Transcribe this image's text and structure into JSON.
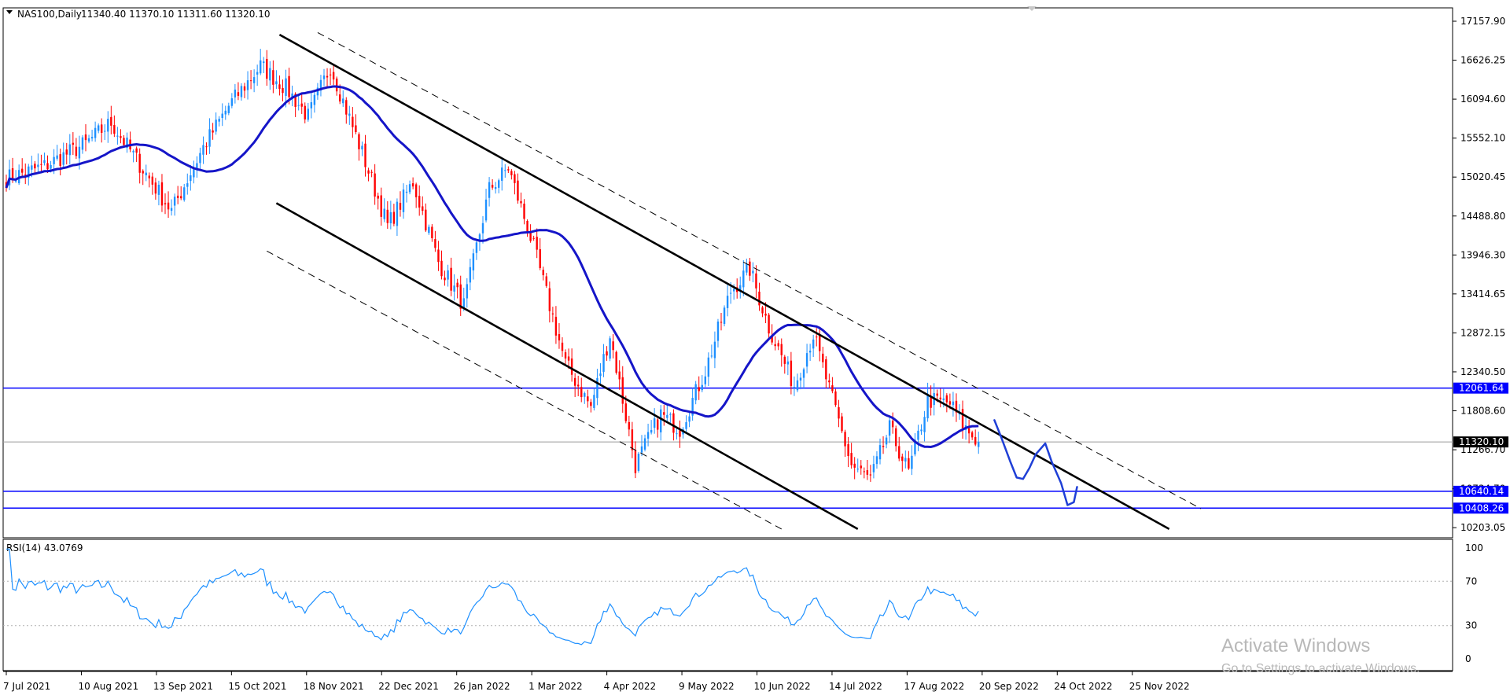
{
  "chart_data": {
    "type": "candlestick",
    "symbol_header": "NAS100,Daily",
    "ohlc_header": "11340.40 11370.10 11311.60 11320.10",
    "price_axis": {
      "ticks": [
        "17157.90",
        "16626.25",
        "16094.60",
        "15552.10",
        "15020.45",
        "14488.80",
        "13946.30",
        "13414.65",
        "12872.15",
        "12340.50",
        "11808.60",
        "11266.70",
        "10734.70",
        "10203.05"
      ],
      "range": [
        10000,
        17300
      ]
    },
    "date_axis": {
      "ticks": [
        "7 Jul 2021",
        "10 Aug 2021",
        "13 Sep 2021",
        "15 Oct 2021",
        "18 Nov 2021",
        "22 Dec 2021",
        "26 Jan 2022",
        "1 Mar 2022",
        "4 Apr 2022",
        "9 May 2022",
        "10 Jun 2022",
        "14 Jul 2022",
        "17 Aug 2022",
        "20 Sep 2022",
        "24 Oct 2022",
        "25 Nov 2022"
      ]
    },
    "anchors": [
      {
        "bar": 0,
        "price": 14950
      },
      {
        "bar": 12,
        "price": 15120
      },
      {
        "bar": 25,
        "price": 15430
      },
      {
        "bar": 33,
        "price": 15720
      },
      {
        "bar": 45,
        "price": 14950
      },
      {
        "bar": 52,
        "price": 14500
      },
      {
        "bar": 62,
        "price": 15380
      },
      {
        "bar": 70,
        "price": 15950
      },
      {
        "bar": 80,
        "price": 16500
      },
      {
        "bar": 88,
        "price": 16200
      },
      {
        "bar": 95,
        "price": 15800
      },
      {
        "bar": 102,
        "price": 16500
      },
      {
        "bar": 112,
        "price": 15300
      },
      {
        "bar": 120,
        "price": 14300
      },
      {
        "bar": 128,
        "price": 14900
      },
      {
        "bar": 136,
        "price": 13800
      },
      {
        "bar": 144,
        "price": 13200
      },
      {
        "bar": 152,
        "price": 14800
      },
      {
        "bar": 158,
        "price": 15100
      },
      {
        "bar": 166,
        "price": 14000
      },
      {
        "bar": 176,
        "price": 12400
      },
      {
        "bar": 184,
        "price": 11800
      },
      {
        "bar": 190,
        "price": 12800
      },
      {
        "bar": 198,
        "price": 11000
      },
      {
        "bar": 206,
        "price": 11700
      },
      {
        "bar": 212,
        "price": 11500
      },
      {
        "bar": 220,
        "price": 12300
      },
      {
        "bar": 228,
        "price": 13400
      },
      {
        "bar": 234,
        "price": 13700
      },
      {
        "bar": 240,
        "price": 12900
      },
      {
        "bar": 248,
        "price": 12100
      },
      {
        "bar": 254,
        "price": 12800
      },
      {
        "bar": 260,
        "price": 11900
      },
      {
        "bar": 266,
        "price": 11000
      },
      {
        "bar": 272,
        "price": 10800
      },
      {
        "bar": 278,
        "price": 11500
      },
      {
        "bar": 284,
        "price": 10900
      },
      {
        "bar": 290,
        "price": 11900
      },
      {
        "bar": 297,
        "price": 11850
      },
      {
        "bar": 302,
        "price": 11500
      },
      {
        "bar": 306,
        "price": 11320
      }
    ],
    "horizontal_levels": [
      {
        "price": 12061.64,
        "label": "12061.64",
        "color": "#0000ff"
      },
      {
        "price": 10640.14,
        "label": "10640.14",
        "color": "#0000ff"
      },
      {
        "price": 10408.26,
        "label": "10408.26",
        "color": "#0000ff"
      }
    ],
    "current_price": {
      "price": 11320.1,
      "label": "11320.10"
    },
    "channel": {
      "upper_solid": [
        {
          "bar": 86,
          "price": 16930
        },
        {
          "bar": 366,
          "price": 10120
        }
      ],
      "lower_solid": [
        {
          "bar": 85,
          "price": 14610
        },
        {
          "bar": 268,
          "price": 10120
        }
      ],
      "upper_dashed": [
        {
          "bar": 98,
          "price": 16960
        },
        {
          "bar": 376,
          "price": 10400
        }
      ],
      "lower_dashed": [
        {
          "bar": 82,
          "price": 13950
        },
        {
          "bar": 244,
          "price": 10120
        }
      ]
    },
    "forecast_path": [
      {
        "bar": 311,
        "price": 11620
      },
      {
        "bar": 313,
        "price": 11400
      },
      {
        "bar": 316,
        "price": 11050
      },
      {
        "bar": 318,
        "price": 10830
      },
      {
        "bar": 320,
        "price": 10810
      },
      {
        "bar": 322,
        "price": 10960
      },
      {
        "bar": 324,
        "price": 11150
      },
      {
        "bar": 327,
        "price": 11300
      },
      {
        "bar": 329,
        "price": 11050
      },
      {
        "bar": 332,
        "price": 10750
      },
      {
        "bar": 334,
        "price": 10450
      },
      {
        "bar": 336,
        "price": 10490
      },
      {
        "bar": 337,
        "price": 10700
      }
    ],
    "colors": {
      "up": "#1e90ff",
      "down": "#ff0000",
      "ma": "#1515c8",
      "levels": "#0000ff",
      "channel": "#000000",
      "forecast": "#1f3fd6"
    },
    "rsi": {
      "label": "RSI(14) 43.0769",
      "ticks": [
        "100",
        "70",
        "30",
        "0"
      ],
      "levels": [
        70,
        30
      ]
    }
  },
  "watermark": {
    "title": "Activate Windows",
    "subtitle": "Go to Settings to activate Windows."
  }
}
